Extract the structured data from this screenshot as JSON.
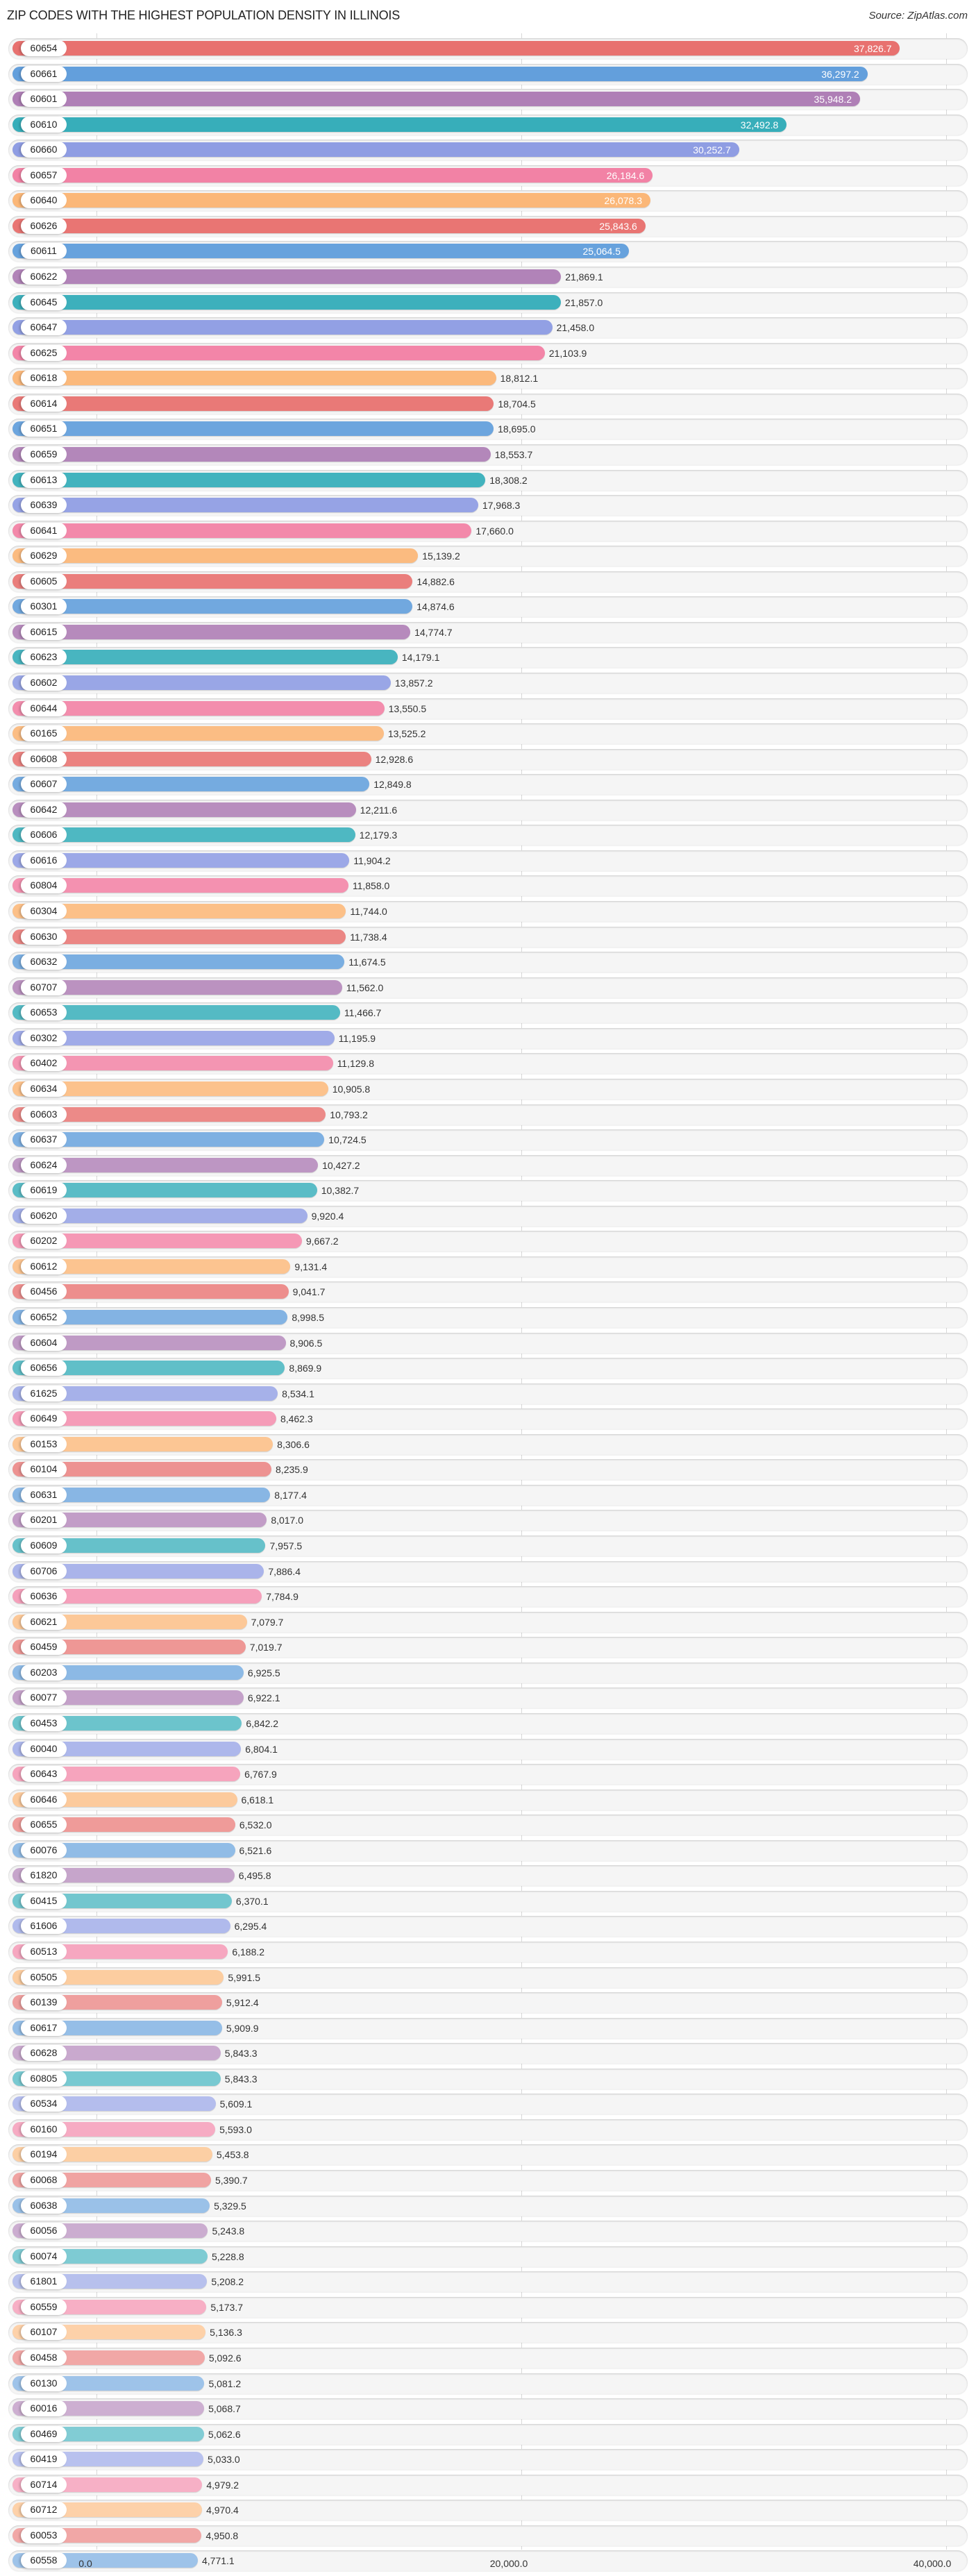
{
  "header": {
    "title": "ZIP CODES WITH THE HIGHEST POPULATION DENSITY IN ILLINOIS",
    "source": "Source: ZipAtlas.com"
  },
  "axis": {
    "ticks": [
      {
        "value": 0,
        "label": "0.0"
      },
      {
        "value": 20000,
        "label": "20,000.0"
      },
      {
        "value": 40000,
        "label": "40,000.0"
      }
    ]
  },
  "palette": [
    "#e8716f",
    "#629fdc",
    "#ae7eb5",
    "#34adb9",
    "#8d9be3",
    "#f27fa3",
    "#fbb574"
  ],
  "chart_data": {
    "type": "bar",
    "orientation": "horizontal",
    "title": "ZIP CODES WITH THE HIGHEST POPULATION DENSITY IN ILLINOIS",
    "xlabel": "",
    "ylabel": "",
    "xlim": [
      0,
      40000
    ],
    "grid": true,
    "categories": [
      "60654",
      "60661",
      "60601",
      "60610",
      "60660",
      "60657",
      "60640",
      "60626",
      "60611",
      "60622",
      "60645",
      "60647",
      "60625",
      "60618",
      "60614",
      "60651",
      "60659",
      "60613",
      "60639",
      "60641",
      "60629",
      "60605",
      "60301",
      "60615",
      "60623",
      "60602",
      "60644",
      "60165",
      "60608",
      "60607",
      "60642",
      "60606",
      "60616",
      "60804",
      "60304",
      "60630",
      "60632",
      "60707",
      "60653",
      "60302",
      "60402",
      "60634",
      "60603",
      "60637",
      "60624",
      "60619",
      "60620",
      "60202",
      "60612",
      "60456",
      "60652",
      "60604",
      "60656",
      "61625",
      "60649",
      "60153",
      "60104",
      "60631",
      "60201",
      "60609",
      "60706",
      "60636",
      "60621",
      "60459",
      "60203",
      "60077",
      "60453",
      "60040",
      "60643",
      "60646",
      "60655",
      "60076",
      "61820",
      "60415",
      "61606",
      "60513",
      "60505",
      "60139",
      "60617",
      "60628",
      "60805",
      "60534",
      "60160",
      "60194",
      "60068",
      "60638",
      "60056",
      "60074",
      "61801",
      "60559",
      "60107",
      "60458",
      "60130",
      "60016",
      "60469",
      "60419",
      "60714",
      "60712",
      "60053",
      "60558"
    ],
    "values": [
      37826.7,
      36297.2,
      35948.2,
      32492.8,
      30252.7,
      26184.6,
      26078.3,
      25843.6,
      25064.5,
      21869.1,
      21857.0,
      21458.0,
      21103.9,
      18812.1,
      18704.5,
      18695.0,
      18553.7,
      18308.2,
      17968.3,
      17660.0,
      15139.2,
      14882.6,
      14874.6,
      14774.7,
      14179.1,
      13857.2,
      13550.5,
      13525.2,
      12928.6,
      12849.8,
      12211.6,
      12179.3,
      11904.2,
      11858.0,
      11744.0,
      11738.4,
      11674.5,
      11562.0,
      11466.7,
      11195.9,
      11129.8,
      10905.8,
      10793.2,
      10724.5,
      10427.2,
      10382.7,
      9920.4,
      9667.2,
      9131.4,
      9041.7,
      8998.5,
      8906.5,
      8869.9,
      8534.1,
      8462.3,
      8306.6,
      8235.9,
      8177.4,
      8017.0,
      7957.5,
      7886.4,
      7784.9,
      7079.7,
      7019.7,
      6925.5,
      6922.1,
      6842.2,
      6804.1,
      6767.9,
      6618.1,
      6532.0,
      6521.6,
      6495.8,
      6370.1,
      6295.4,
      6188.2,
      5991.5,
      5912.4,
      5909.9,
      5843.3,
      5843.3,
      5609.1,
      5593.0,
      5453.8,
      5390.7,
      5329.5,
      5243.8,
      5228.8,
      5208.2,
      5173.7,
      5136.3,
      5092.6,
      5081.2,
      5068.7,
      5062.6,
      5033.0,
      4979.2,
      4970.4,
      4950.8,
      4771.1
    ],
    "labels": [
      "37,826.7",
      "36,297.2",
      "35,948.2",
      "32,492.8",
      "30,252.7",
      "26,184.6",
      "26,078.3",
      "25,843.6",
      "25,064.5",
      "21,869.1",
      "21,857.0",
      "21,458.0",
      "21,103.9",
      "18,812.1",
      "18,704.5",
      "18,695.0",
      "18,553.7",
      "18,308.2",
      "17,968.3",
      "17,660.0",
      "15,139.2",
      "14,882.6",
      "14,874.6",
      "14,774.7",
      "14,179.1",
      "13,857.2",
      "13,550.5",
      "13,525.2",
      "12,928.6",
      "12,849.8",
      "12,211.6",
      "12,179.3",
      "11,904.2",
      "11,858.0",
      "11,744.0",
      "11,738.4",
      "11,674.5",
      "11,562.0",
      "11,466.7",
      "11,195.9",
      "11,129.8",
      "10,905.8",
      "10,793.2",
      "10,724.5",
      "10,427.2",
      "10,382.7",
      "9,920.4",
      "9,667.2",
      "9,131.4",
      "9,041.7",
      "8,998.5",
      "8,906.5",
      "8,869.9",
      "8,534.1",
      "8,462.3",
      "8,306.6",
      "8,235.9",
      "8,177.4",
      "8,017.0",
      "7,957.5",
      "7,886.4",
      "7,784.9",
      "7,079.7",
      "7,019.7",
      "6,925.5",
      "6,922.1",
      "6,842.2",
      "6,804.1",
      "6,767.9",
      "6,618.1",
      "6,532.0",
      "6,521.6",
      "6,495.8",
      "6,370.1",
      "6,295.4",
      "6,188.2",
      "5,991.5",
      "5,912.4",
      "5,909.9",
      "5,843.3",
      "5,843.3",
      "5,609.1",
      "5,593.0",
      "5,453.8",
      "5,390.7",
      "5,329.5",
      "5,243.8",
      "5,228.8",
      "5,208.2",
      "5,173.7",
      "5,136.3",
      "5,092.6",
      "5,081.2",
      "5,068.7",
      "5,062.6",
      "5,033.0",
      "4,979.2",
      "4,970.4",
      "4,950.8",
      "4,771.1"
    ],
    "value_labels_inside_count": 9,
    "legend": null
  }
}
